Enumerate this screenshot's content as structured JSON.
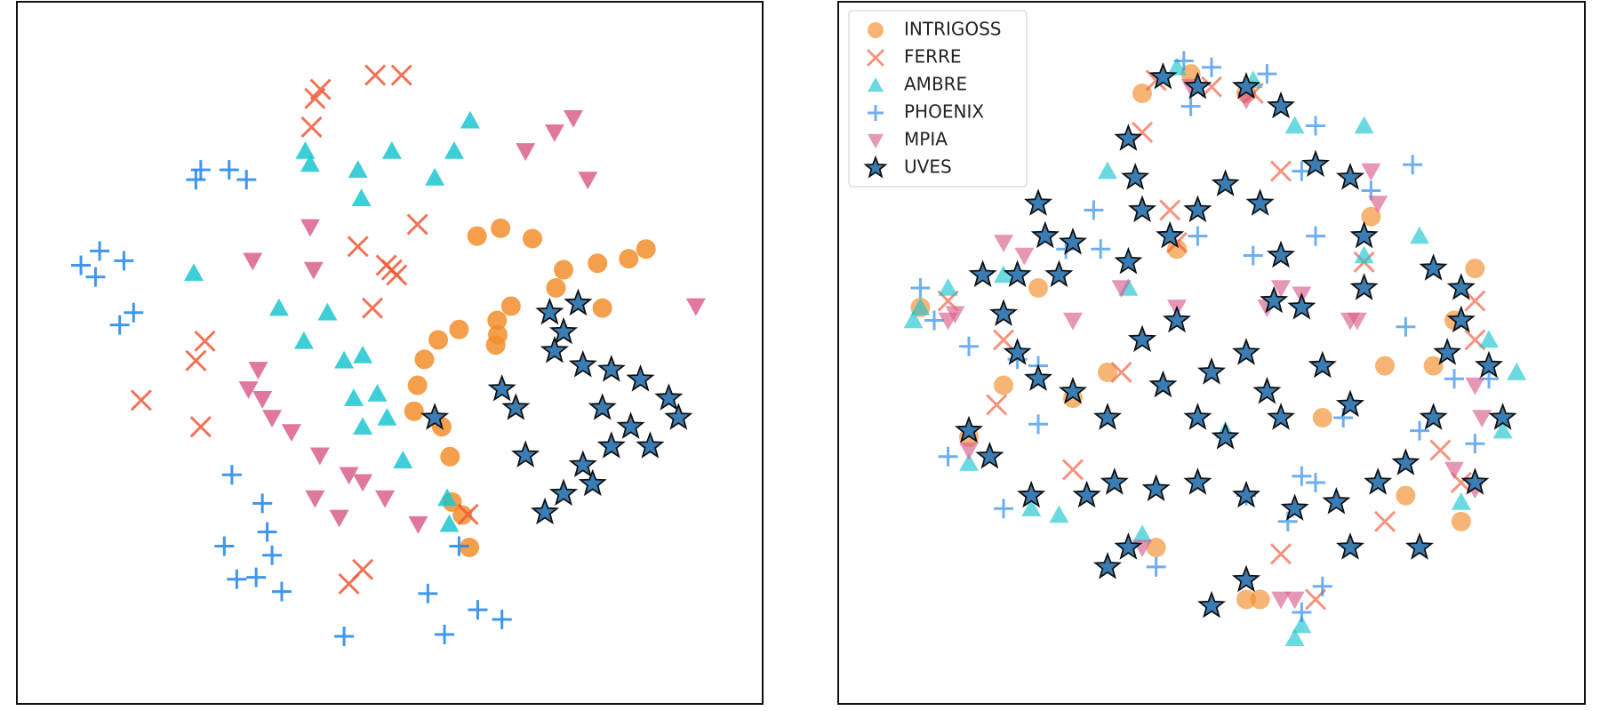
{
  "chart_data": [
    {
      "type": "scatter",
      "xlim": [
        0,
        100
      ],
      "ylim": [
        0,
        100
      ],
      "alpha": 0.85,
      "series": [
        {
          "marker": "o",
          "color": "#f28e2b",
          "x": [
            62.6,
            66.0,
            70.6,
            75.1,
            80.0,
            84.5,
            87.0,
            80.7,
            67.5,
            65.5,
            60.0,
            57.0,
            55.0,
            54.0,
            53.5,
            57.5,
            58.7,
            59.0,
            60.5,
            61.5,
            74.0,
            65.3,
            65.6
          ],
          "y": [
            68.0,
            69.2,
            67.6,
            62.8,
            63.8,
            64.5,
            66.0,
            56.9,
            57.2,
            55.0,
            53.6,
            52.0,
            49.0,
            45.0,
            41.0,
            38.6,
            34.0,
            27.0,
            25.0,
            20.0,
            60.0,
            51.2,
            52.8
          ]
        },
        {
          "marker": "x",
          "color": "#ee5a3a",
          "x": [
            50.3,
            39.2,
            51.7,
            38.7,
            45.4,
            54.0,
            47.5,
            23.3,
            22.0,
            14.1,
            22.7,
            46.1,
            44.1,
            61.3,
            47.9,
            40.0,
            49.5,
            51.0
          ],
          "y": [
            62.8,
            89.2,
            92.8,
            84.8,
            66.4,
            69.8,
            56.9,
            51.8,
            48.8,
            42.7,
            38.6,
            16.6,
            14.4,
            25.1,
            92.8,
            90.6,
            63.5,
            62.0
          ]
        },
        {
          "marker": "^",
          "color": "#1cc6d0",
          "x": [
            37.8,
            45.4,
            45.9,
            50.3,
            59.3,
            61.6,
            56.5,
            21.7,
            34.0,
            37.6,
            41.0,
            43.4,
            46.1,
            44.8,
            48.2,
            46.1,
            49.6,
            51.9,
            58.3,
            58.6,
            38.5
          ],
          "y": [
            81.1,
            78.2,
            73.8,
            81.1,
            81.1,
            85.8,
            77.0,
            62.3,
            56.9,
            51.8,
            56.2,
            48.8,
            49.6,
            43.0,
            43.7,
            38.6,
            40.0,
            33.4,
            27.6,
            23.6,
            79.1
          ]
        },
        {
          "marker": "+",
          "color": "#1f84e8",
          "x": [
            22.7,
            26.8,
            29.3,
            8.1,
            5.4,
            11.6,
            7.5,
            13.0,
            11.0,
            27.2,
            31.6,
            32.3,
            26.1,
            33.0,
            27.9,
            30.7,
            34.4,
            55.5,
            60.0,
            43.4,
            57.9,
            62.7,
            66.2,
            22.0
          ],
          "y": [
            78.2,
            78.2,
            76.7,
            65.7,
            63.5,
            64.2,
            61.7,
            56.2,
            54.3,
            31.2,
            26.8,
            22.4,
            20.2,
            18.8,
            15.1,
            15.4,
            13.2,
            12.9,
            20.2,
            6.3,
            6.6,
            10.4,
            8.9,
            76.7
          ]
        },
        {
          "marker": "v",
          "color": "#d95f8e",
          "x": [
            69.6,
            73.8,
            76.5,
            78.6,
            38.5,
            30.2,
            39.0,
            31.0,
            29.6,
            33.0,
            35.8,
            39.9,
            44.1,
            46.1,
            49.3,
            39.2,
            42.7,
            54.1,
            94.2,
            31.6
          ],
          "y": [
            81.1,
            84.0,
            86.2,
            76.7,
            69.4,
            64.2,
            62.8,
            47.4,
            44.4,
            40.0,
            37.8,
            34.2,
            31.2,
            30.1,
            27.6,
            27.6,
            24.6,
            23.6,
            57.2,
            42.9
          ]
        },
        {
          "marker": "*",
          "color": "#3a7db5",
          "edgecolor": "#111111",
          "x": [
            73.1,
            75.1,
            73.8,
            77.9,
            82.0,
            86.2,
            90.3,
            91.7,
            87.6,
            82.0,
            77.9,
            75.1,
            72.4,
            69.6,
            68.2,
            66.2,
            56.5,
            80.7,
            84.8,
            77.2,
            79.3
          ],
          "y": [
            56.2,
            53.2,
            50.3,
            48.1,
            47.4,
            45.9,
            43.0,
            40.0,
            35.6,
            35.6,
            32.7,
            28.3,
            25.4,
            34.2,
            41.5,
            44.4,
            40.0,
            41.5,
            38.6,
            57.6,
            29.8
          ]
        }
      ]
    },
    {
      "type": "scatter",
      "xlim": [
        0,
        100
      ],
      "ylim": [
        0,
        100
      ],
      "alpha": 0.65,
      "legend": "upper-left",
      "series": [
        {
          "name": "INTRIGOSS",
          "marker": "o",
          "color": "#f28e2b",
          "x": [
            40,
            55,
            47,
            73,
            88,
            85,
            82,
            78,
            86,
            57,
            55,
            35,
            20,
            30,
            15,
            8,
            25,
            45,
            42,
            75,
            66
          ],
          "y": [
            90,
            90,
            93,
            71,
            63,
            55,
            48,
            28,
            24,
            12,
            12,
            47,
            45,
            43,
            37,
            57,
            60,
            66,
            20,
            48,
            40
          ]
        },
        {
          "name": "FERRE",
          "marker": "x",
          "color": "#ee5a3a",
          "x": [
            42,
            50,
            56,
            40,
            44,
            60,
            72,
            88,
            88,
            86,
            83,
            60,
            65,
            30,
            19,
            12,
            20,
            37,
            75,
            45
          ],
          "y": [
            92,
            91,
            90,
            84,
            72,
            78,
            64,
            58,
            52,
            30,
            35,
            19,
            12,
            32,
            42,
            58,
            52,
            47,
            24,
            67
          ]
        },
        {
          "name": "AMBRE",
          "marker": "^",
          "color": "#1cc6d0",
          "x": [
            45,
            56,
            62,
            72,
            35,
            8,
            7,
            12,
            20,
            38,
            72,
            80,
            90,
            94,
            92,
            86,
            62,
            63,
            28,
            40,
            15,
            24,
            52
          ],
          "y": [
            94,
            92,
            85,
            85,
            78,
            57,
            55,
            60,
            62,
            60,
            65,
            68,
            52,
            47,
            38,
            27,
            6,
            8,
            25,
            22,
            33,
            26,
            38
          ]
        },
        {
          "name": "PHOENIX",
          "marker": "+",
          "color": "#1f84e8",
          "x": [
            46,
            50,
            58,
            47,
            65,
            63,
            73,
            79,
            33,
            34,
            29,
            48,
            56,
            65,
            8,
            10,
            15,
            25,
            25,
            12,
            20,
            55,
            61,
            85,
            90,
            88,
            80,
            63,
            65,
            66,
            63,
            42,
            22,
            78,
            69
          ],
          "y": [
            95,
            94,
            93,
            88,
            85,
            78,
            75,
            79,
            72,
            66,
            66,
            68,
            65,
            68,
            60,
            55,
            51,
            48,
            39,
            34,
            26,
            28,
            24,
            46,
            46,
            36,
            38,
            31,
            30,
            14,
            10,
            17,
            49,
            54,
            40
          ]
        },
        {
          "name": "MPIA",
          "marker": "v",
          "color": "#d95f8e",
          "x": [
            47,
            55,
            73,
            74,
            13,
            12,
            23,
            20,
            60,
            58,
            63,
            45,
            70,
            71,
            88,
            89,
            85,
            88,
            60,
            62,
            40,
            15,
            37,
            30
          ],
          "y": [
            91,
            89,
            78,
            73,
            56,
            55,
            65,
            67,
            60,
            57,
            59,
            57,
            55,
            55,
            45,
            40,
            32,
            29,
            12,
            12,
            20,
            35,
            60,
            55
          ]
        },
        {
          "name": "UVES",
          "marker": "*",
          "color": "#3a7db5",
          "edgecolor": "#111111",
          "x": [
            43,
            48,
            55,
            60,
            38,
            39,
            40,
            25,
            26,
            22,
            17,
            28,
            30,
            20,
            22,
            25,
            30,
            15,
            18,
            24,
            32,
            36,
            42,
            48,
            55,
            62,
            68,
            74,
            78,
            82,
            84,
            86,
            82,
            72,
            72,
            65,
            70,
            57,
            52,
            48,
            44,
            38,
            60,
            59,
            63,
            86,
            90,
            92,
            88,
            80,
            70,
            55,
            50,
            38,
            35,
            50,
            48,
            52,
            45,
            40,
            55,
            58,
            60,
            66,
            70,
            35,
            43
          ],
          "y": [
            92.5,
            91,
            91,
            88,
            83,
            77,
            72,
            73,
            68,
            62,
            62,
            62,
            67,
            56,
            50,
            46,
            44,
            38,
            34,
            28,
            28,
            30,
            29,
            30,
            28,
            26,
            27,
            30,
            33,
            40,
            50,
            60,
            63,
            68,
            60,
            79,
            77,
            73,
            76,
            72,
            68,
            64,
            65,
            58,
            57,
            55,
            48,
            40,
            30,
            20,
            20,
            15,
            11,
            20,
            17,
            47,
            40,
            37,
            55,
            52,
            50,
            44,
            40,
            48,
            42,
            40,
            45
          ]
        }
      ]
    }
  ]
}
